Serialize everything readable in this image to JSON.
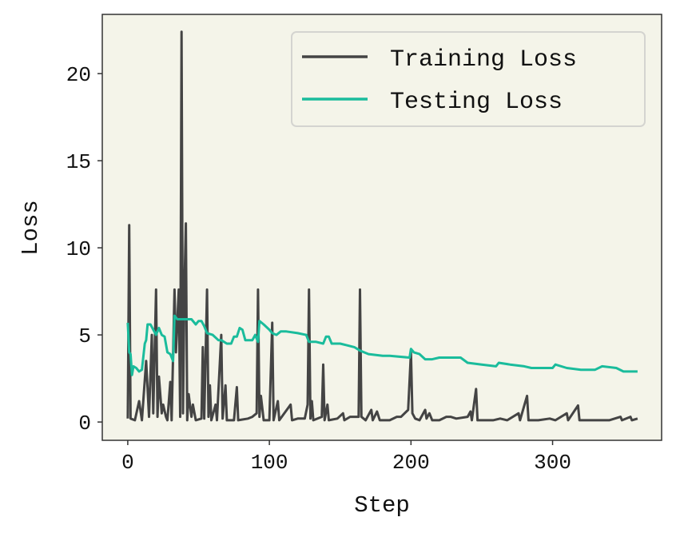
{
  "chart_data": {
    "type": "line",
    "title": "",
    "xlabel": "Step",
    "ylabel": "Loss",
    "xlim": [
      -18,
      377
    ],
    "ylim": [
      -1.05,
      23.4
    ],
    "xticks": [
      0,
      100,
      200,
      300
    ],
    "yticks": [
      0,
      5,
      10,
      15,
      20
    ],
    "grid": false,
    "legend_placement": "top-right",
    "background_color": "#f4f4e9",
    "series": [
      {
        "name": "Training Loss",
        "color": "#444444",
        "points": [
          [
            0,
            0.2
          ],
          [
            1,
            11.3
          ],
          [
            2,
            0.2
          ],
          [
            5,
            0.1
          ],
          [
            8,
            1.2
          ],
          [
            10,
            0.1
          ],
          [
            13,
            3.5
          ],
          [
            15,
            0.3
          ],
          [
            17,
            5.0
          ],
          [
            18,
            0.5
          ],
          [
            20,
            7.6
          ],
          [
            21,
            0.3
          ],
          [
            22,
            2.6
          ],
          [
            24,
            0.5
          ],
          [
            25,
            1.0
          ],
          [
            27,
            0.3
          ],
          [
            28,
            0.1
          ],
          [
            30,
            2.3
          ],
          [
            31,
            0.1
          ],
          [
            33,
            7.6
          ],
          [
            34,
            4.0
          ],
          [
            36,
            7.6
          ],
          [
            37,
            0.3
          ],
          [
            38,
            22.4
          ],
          [
            39,
            0.5
          ],
          [
            40,
            7.6
          ],
          [
            41,
            11.4
          ],
          [
            42,
            0.1
          ],
          [
            43,
            1.6
          ],
          [
            45,
            0.3
          ],
          [
            46,
            1.0
          ],
          [
            48,
            0.1
          ],
          [
            52,
            0.2
          ],
          [
            53,
            4.3
          ],
          [
            54,
            0.2
          ],
          [
            56,
            7.6
          ],
          [
            57,
            0.3
          ],
          [
            58,
            2.1
          ],
          [
            59,
            0.1
          ],
          [
            62,
            1.0
          ],
          [
            63,
            0.1
          ],
          [
            66,
            5.0
          ],
          [
            67,
            0.2
          ],
          [
            69,
            2.1
          ],
          [
            70,
            0.1
          ],
          [
            75,
            0.1
          ],
          [
            77,
            2.0
          ],
          [
            78,
            0.1
          ],
          [
            85,
            0.2
          ],
          [
            88,
            0.3
          ],
          [
            91,
            0.5
          ],
          [
            92,
            7.6
          ],
          [
            93,
            0.3
          ],
          [
            94,
            1.5
          ],
          [
            96,
            0.1
          ],
          [
            100,
            0.1
          ],
          [
            102,
            5.7
          ],
          [
            103,
            0.1
          ],
          [
            106,
            1.2
          ],
          [
            107,
            0.1
          ],
          [
            115,
            1.0
          ],
          [
            116,
            0.1
          ],
          [
            120,
            0.2
          ],
          [
            125,
            0.2
          ],
          [
            127,
            1.0
          ],
          [
            128,
            7.6
          ],
          [
            129,
            0.2
          ],
          [
            130,
            1.2
          ],
          [
            131,
            0.1
          ],
          [
            137,
            0.3
          ],
          [
            138,
            3.3
          ],
          [
            139,
            0.1
          ],
          [
            141,
            1.0
          ],
          [
            142,
            0.1
          ],
          [
            148,
            0.2
          ],
          [
            152,
            0.5
          ],
          [
            153,
            0.1
          ],
          [
            157,
            0.3
          ],
          [
            160,
            0.3
          ],
          [
            163,
            0.3
          ],
          [
            164,
            7.6
          ],
          [
            165,
            0.3
          ],
          [
            168,
            0.1
          ],
          [
            172,
            0.7
          ],
          [
            173,
            0.1
          ],
          [
            176,
            0.6
          ],
          [
            178,
            0.1
          ],
          [
            185,
            0.1
          ],
          [
            190,
            0.3
          ],
          [
            193,
            0.3
          ],
          [
            198,
            0.7
          ],
          [
            200,
            4.0
          ],
          [
            201,
            0.5
          ],
          [
            203,
            0.2
          ],
          [
            206,
            0.1
          ],
          [
            210,
            0.7
          ],
          [
            211,
            0.2
          ],
          [
            213,
            0.5
          ],
          [
            215,
            0.1
          ],
          [
            220,
            0.1
          ],
          [
            225,
            0.3
          ],
          [
            228,
            0.3
          ],
          [
            232,
            0.2
          ],
          [
            240,
            0.3
          ],
          [
            242,
            0.6
          ],
          [
            243,
            0.1
          ],
          [
            246,
            1.9
          ],
          [
            247,
            0.1
          ],
          [
            250,
            0.1
          ],
          [
            258,
            0.1
          ],
          [
            263,
            0.2
          ],
          [
            268,
            0.1
          ],
          [
            276,
            0.5
          ],
          [
            277,
            0.1
          ],
          [
            282,
            1.5
          ],
          [
            283,
            0.1
          ],
          [
            290,
            0.1
          ],
          [
            298,
            0.2
          ],
          [
            302,
            0.1
          ],
          [
            310,
            0.5
          ],
          [
            311,
            0.1
          ],
          [
            318,
            0.95
          ],
          [
            319,
            0.1
          ],
          [
            326,
            0.1
          ],
          [
            334,
            0.1
          ],
          [
            340,
            0.1
          ],
          [
            348,
            0.3
          ],
          [
            349,
            0.1
          ],
          [
            355,
            0.3
          ],
          [
            356,
            0.1
          ],
          [
            360,
            0.2
          ]
        ]
      },
      {
        "name": "Testing Loss",
        "color": "#1abc9c",
        "points": [
          [
            0,
            5.7
          ],
          [
            1,
            4.0
          ],
          [
            2,
            3.9
          ],
          [
            3,
            2.7
          ],
          [
            4,
            3.2
          ],
          [
            6,
            3.1
          ],
          [
            8,
            2.9
          ],
          [
            10,
            3.0
          ],
          [
            12,
            4.5
          ],
          [
            13,
            4.7
          ],
          [
            14,
            5.6
          ],
          [
            16,
            5.6
          ],
          [
            18,
            5.3
          ],
          [
            20,
            5.0
          ],
          [
            22,
            5.4
          ],
          [
            24,
            5.0
          ],
          [
            26,
            4.9
          ],
          [
            28,
            4.0
          ],
          [
            30,
            3.9
          ],
          [
            32,
            3.5
          ],
          [
            33,
            6.1
          ],
          [
            35,
            5.9
          ],
          [
            40,
            5.9
          ],
          [
            45,
            5.9
          ],
          [
            48,
            5.6
          ],
          [
            50,
            5.8
          ],
          [
            52,
            5.8
          ],
          [
            54,
            5.5
          ],
          [
            56,
            5.1
          ],
          [
            60,
            5.0
          ],
          [
            64,
            4.7
          ],
          [
            66,
            4.7
          ],
          [
            70,
            4.5
          ],
          [
            73,
            4.5
          ],
          [
            75,
            4.9
          ],
          [
            77,
            4.9
          ],
          [
            79,
            5.4
          ],
          [
            81,
            5.3
          ],
          [
            83,
            4.7
          ],
          [
            88,
            4.7
          ],
          [
            90,
            5.0
          ],
          [
            92,
            4.6
          ],
          [
            93,
            5.8
          ],
          [
            96,
            5.6
          ],
          [
            100,
            5.3
          ],
          [
            102,
            5.1
          ],
          [
            105,
            5.0
          ],
          [
            108,
            5.2
          ],
          [
            112,
            5.2
          ],
          [
            120,
            5.1
          ],
          [
            126,
            5.0
          ],
          [
            128,
            4.6
          ],
          [
            133,
            4.6
          ],
          [
            138,
            4.5
          ],
          [
            140,
            4.9
          ],
          [
            142,
            4.9
          ],
          [
            144,
            4.5
          ],
          [
            150,
            4.5
          ],
          [
            155,
            4.4
          ],
          [
            160,
            4.3
          ],
          [
            164,
            4.1
          ],
          [
            170,
            3.9
          ],
          [
            180,
            3.8
          ],
          [
            185,
            3.8
          ],
          [
            199,
            3.7
          ],
          [
            200,
            4.2
          ],
          [
            202,
            4.0
          ],
          [
            206,
            3.9
          ],
          [
            210,
            3.6
          ],
          [
            215,
            3.6
          ],
          [
            220,
            3.7
          ],
          [
            235,
            3.7
          ],
          [
            240,
            3.4
          ],
          [
            250,
            3.3
          ],
          [
            260,
            3.2
          ],
          [
            262,
            3.4
          ],
          [
            270,
            3.3
          ],
          [
            280,
            3.2
          ],
          [
            285,
            3.1
          ],
          [
            300,
            3.1
          ],
          [
            302,
            3.3
          ],
          [
            310,
            3.1
          ],
          [
            320,
            3.0
          ],
          [
            330,
            3.0
          ],
          [
            335,
            3.2
          ],
          [
            345,
            3.1
          ],
          [
            350,
            2.9
          ],
          [
            360,
            2.9
          ]
        ]
      }
    ]
  }
}
